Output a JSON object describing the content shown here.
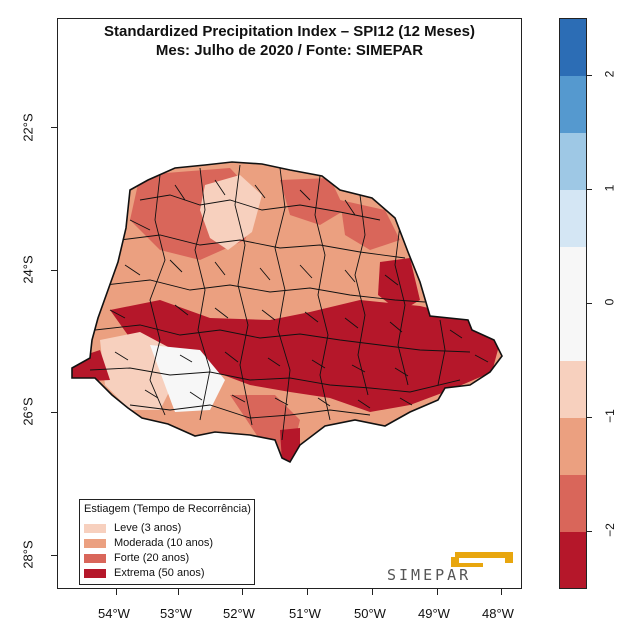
{
  "title": {
    "line1": "Standardized Precipitation Index – SPI12 (12 Meses)",
    "line2": "Mes: Julho de 2020 / Fonte: SIMEPAR"
  },
  "axes": {
    "x_ticks": [
      "54°W",
      "53°W",
      "52°W",
      "51°W",
      "50°W",
      "49°W",
      "48°W"
    ],
    "y_ticks": [
      "22°S",
      "24°S",
      "26°S",
      "28°S"
    ]
  },
  "legend": {
    "title": "Estiagem (Tempo de Recorrência)",
    "items": [
      {
        "label": "Leve (3 anos)",
        "color": "#f7d0be"
      },
      {
        "label": "Moderada (10 anos)",
        "color": "#eba080"
      },
      {
        "label": "Forte (20 anos)",
        "color": "#d9665a"
      },
      {
        "label": "Extrema (50 anos)",
        "color": "#b5172a"
      }
    ]
  },
  "colorbar": {
    "ticks": [
      "2",
      "1",
      "0",
      "−1",
      "−2"
    ],
    "colors": [
      "#2c6db5",
      "#5599cf",
      "#9ec8e5",
      "#d4e6f4",
      "#f7f7f7",
      "#f7d0be",
      "#eba080",
      "#d9665a",
      "#b5172a"
    ]
  },
  "logo": {
    "text": "SIMEPAR",
    "accent": "#e8a60e"
  },
  "map_colors": {
    "leve": "#f7d0be",
    "moderada": "#eba080",
    "forte": "#d9665a",
    "extrema": "#b5172a",
    "near_normal": "#f7f7f7"
  }
}
